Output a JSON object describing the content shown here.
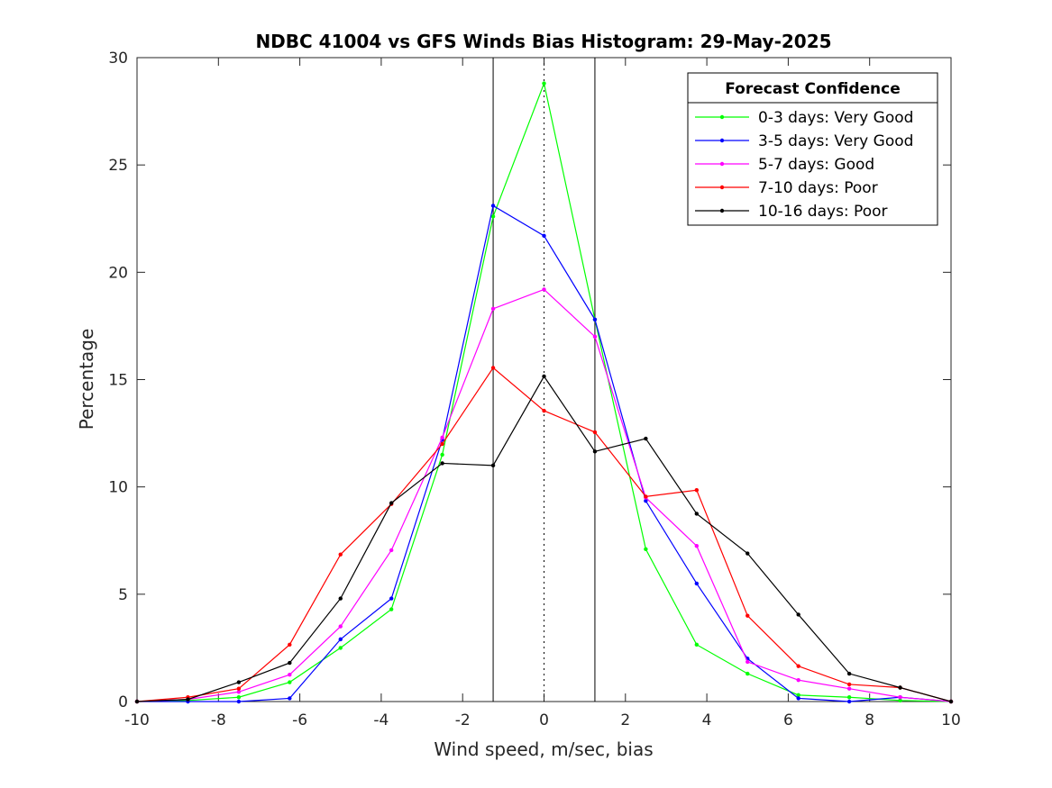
{
  "chart_data": {
    "type": "line",
    "title": "NDBC 41004 vs GFS Winds Bias Histogram: 29-May-2025",
    "xlabel": "Wind speed, m/sec, bias",
    "ylabel": "Percentage",
    "xlim": [
      -10,
      10
    ],
    "ylim": [
      0,
      30
    ],
    "xticks": [
      -10,
      -8,
      -6,
      -4,
      -2,
      0,
      2,
      4,
      6,
      8,
      10
    ],
    "yticks": [
      0,
      5,
      10,
      15,
      20,
      25,
      30
    ],
    "grid": false,
    "legend_title": "Forecast Confidence",
    "legend_position": "top-right",
    "reference_lines": [
      {
        "x": -1.25,
        "style": "solid"
      },
      {
        "x": 0,
        "style": "dotted"
      },
      {
        "x": 1.25,
        "style": "solid"
      }
    ],
    "x": [
      -10,
      -8.75,
      -7.5,
      -6.25,
      -5,
      -3.75,
      -2.5,
      -1.25,
      0,
      1.25,
      2.5,
      3.75,
      5,
      6.25,
      7.5,
      8.75,
      10
    ],
    "series": [
      {
        "name": "0-3 days: Very Good",
        "color": "#00ff00",
        "values": [
          0,
          0.05,
          0.2,
          0.9,
          2.5,
          4.3,
          11.5,
          22.6,
          28.8,
          17.8,
          7.1,
          2.65,
          1.3,
          0.3,
          0.2,
          0.05,
          0
        ]
      },
      {
        "name": "3-5 days: Very Good",
        "color": "#0000ff",
        "values": [
          0,
          0,
          0,
          0.15,
          2.9,
          4.8,
          12.2,
          23.1,
          21.7,
          17.8,
          9.35,
          5.5,
          2.0,
          0.15,
          0,
          0.2,
          0
        ]
      },
      {
        "name": "5-7 days: Good",
        "color": "#ff00ff",
        "values": [
          0,
          0.1,
          0.45,
          1.25,
          3.5,
          7.05,
          12.3,
          18.3,
          19.2,
          17.0,
          9.5,
          7.25,
          1.85,
          1.0,
          0.6,
          0.2,
          0
        ]
      },
      {
        "name": "7-10 days: Poor",
        "color": "#ff0000",
        "values": [
          0,
          0.2,
          0.6,
          2.65,
          6.85,
          9.2,
          12.0,
          15.55,
          13.55,
          12.55,
          9.55,
          9.85,
          4.0,
          1.65,
          0.8,
          0.65,
          0
        ]
      },
      {
        "name": "10-16 days: Poor",
        "color": "#000000",
        "values": [
          0,
          0.1,
          0.9,
          1.8,
          4.8,
          9.25,
          11.1,
          11.0,
          15.15,
          11.65,
          12.25,
          8.75,
          6.9,
          4.05,
          1.3,
          0.65,
          0
        ]
      }
    ]
  }
}
